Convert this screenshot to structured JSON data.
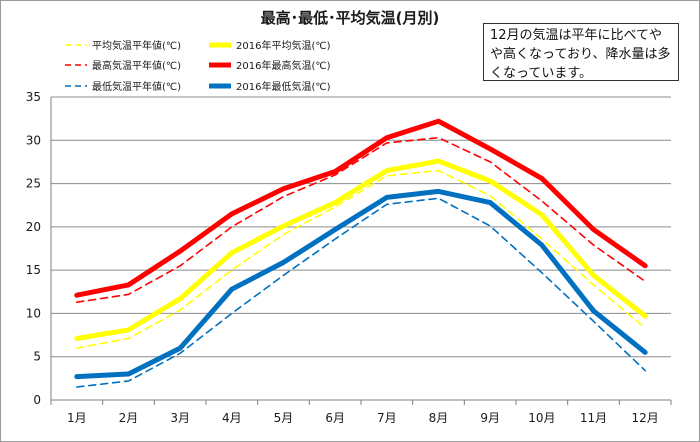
{
  "title": "最高･最低･平均気温(月別)",
  "note": "12月の気温は平年に比べてやや高くなっており、降水量は多くなっています。",
  "chart_data": {
    "type": "line",
    "title": "最高･最低･平均気温(月別)",
    "xlabel": "",
    "ylabel": "",
    "categories": [
      "1月",
      "2月",
      "3月",
      "4月",
      "5月",
      "6月",
      "7月",
      "8月",
      "9月",
      "10月",
      "11月",
      "12月"
    ],
    "ylim": [
      0,
      35
    ],
    "yticks": [
      0,
      5,
      10,
      15,
      20,
      25,
      30,
      35
    ],
    "grid": true,
    "legend_position": "top-left",
    "series": [
      {
        "name": "平均気温平年値(℃)",
        "color": "#ffff00",
        "style": "dashed",
        "values": [
          6.0,
          7.1,
          10.4,
          15.0,
          19.1,
          22.3,
          25.9,
          26.5,
          23.6,
          18.6,
          13.3,
          8.3
        ]
      },
      {
        "name": "2016年平均気温(℃)",
        "color": "#ffff00",
        "style": "solid",
        "values": [
          7.1,
          8.1,
          11.7,
          17.0,
          20.1,
          22.8,
          26.5,
          27.6,
          25.3,
          21.4,
          14.4,
          9.7
        ]
      },
      {
        "name": "最高気温平年値(℃)",
        "color": "#ff0000",
        "style": "dashed",
        "values": [
          11.3,
          12.2,
          15.5,
          20.0,
          23.5,
          26.0,
          29.7,
          30.3,
          27.5,
          23.0,
          17.9,
          13.7
        ]
      },
      {
        "name": "2016年最高気温(℃)",
        "color": "#ff0000",
        "style": "solid",
        "values": [
          12.1,
          13.3,
          17.2,
          21.5,
          24.4,
          26.4,
          30.3,
          32.2,
          29.0,
          25.6,
          19.7,
          15.5
        ]
      },
      {
        "name": "最低気温平年値(℃)",
        "color": "#0070c0",
        "style": "dashed",
        "values": [
          1.5,
          2.2,
          5.4,
          10.0,
          14.4,
          18.6,
          22.6,
          23.3,
          20.1,
          14.7,
          9.1,
          3.4
        ]
      },
      {
        "name": "2016年最低気温(℃)",
        "color": "#0070c0",
        "style": "solid",
        "values": [
          2.7,
          3.0,
          6.0,
          12.8,
          15.9,
          19.7,
          23.4,
          24.1,
          22.8,
          17.9,
          10.3,
          5.5
        ]
      }
    ]
  }
}
